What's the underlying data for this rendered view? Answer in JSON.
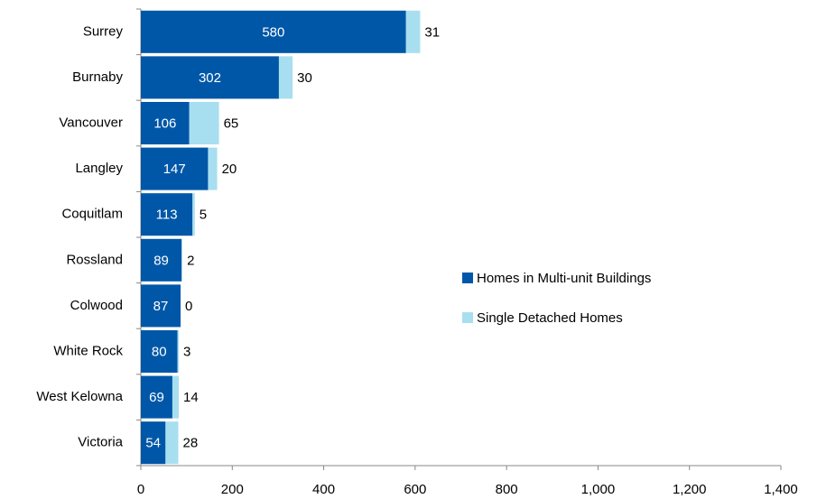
{
  "chart_data": {
    "type": "bar",
    "orientation": "horizontal",
    "stacked": true,
    "categories": [
      "Surrey",
      "Burnaby",
      "Vancouver",
      "Langley",
      "Coquitlam",
      "Rossland",
      "Colwood",
      "White Rock",
      "West Kelowna",
      "Victoria"
    ],
    "series": [
      {
        "name": "Homes in Multi-unit Buildings",
        "color": "#0057a8",
        "values": [
          580,
          302,
          106,
          147,
          113,
          89,
          87,
          80,
          69,
          54
        ]
      },
      {
        "name": "Single Detached Homes",
        "color": "#a8dff0",
        "values": [
          31,
          30,
          65,
          20,
          5,
          2,
          0,
          3,
          14,
          28
        ]
      }
    ],
    "xlim": [
      0,
      1400
    ],
    "xticks": [
      0,
      200,
      400,
      600,
      800,
      {
        "value": 1000,
        "label": "1,000"
      },
      {
        "value": 1200,
        "label": "1,200"
      },
      {
        "value": 1400,
        "label": "1,400"
      }
    ],
    "legend": "center-right"
  }
}
